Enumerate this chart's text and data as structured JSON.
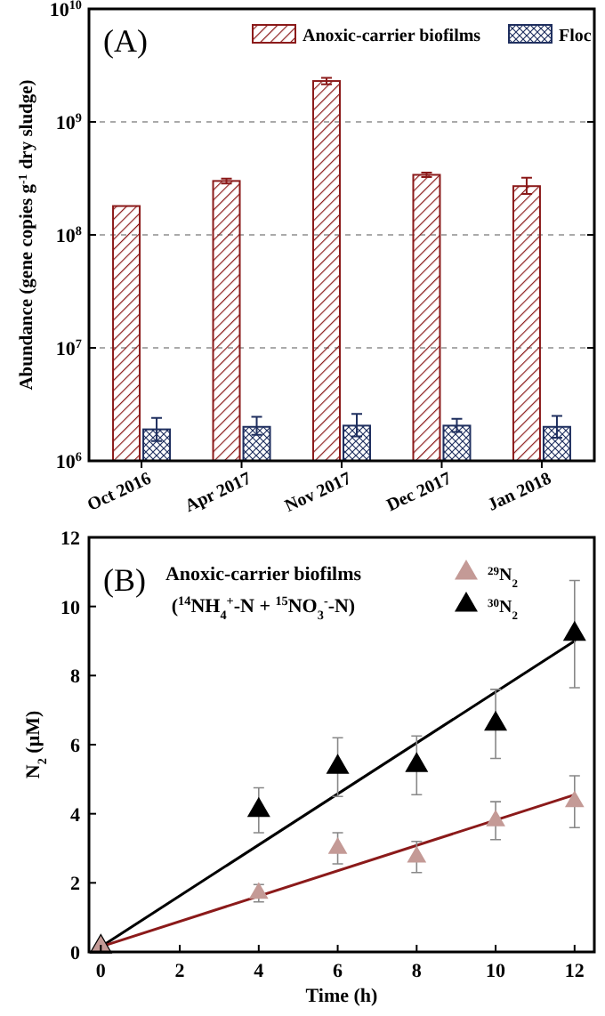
{
  "chart_data": [
    {
      "type": "bar",
      "annotations": [
        "(A)"
      ],
      "ylabel": "Abundance (gene copies g$^{-1}$ dry sludge)",
      "categories": [
        "Oct 2016",
        "Apr 2017",
        "Nov 2017",
        "Dec 2017",
        "Jan 2018"
      ],
      "log": true,
      "ylim": [
        1000000,
        10000000000
      ],
      "yticks": [
        {
          "value": 1000000,
          "label": "10$^{6}$"
        },
        {
          "value": 10000000,
          "label": "10$^{7}$"
        },
        {
          "value": 100000000,
          "label": "10$^{8}$"
        },
        {
          "value": 1000000000,
          "label": "10$^{9}$"
        },
        {
          "value": 10000000000,
          "label": "10$^{10}$"
        }
      ],
      "grid": "y",
      "legend": "top right",
      "series": [
        {
          "name": "Anoxic-carrier biofilms",
          "color": "#8b1a1a",
          "values": [
            180000000,
            300000000,
            2300000000,
            340000000,
            270000000
          ],
          "errors": [
            null,
            [
              285000000,
              315000000
            ],
            [
              2150000000,
              2450000000
            ],
            [
              325000000,
              355000000
            ],
            [
              230000000,
              320000000
            ]
          ]
        },
        {
          "name": "Floc",
          "color": "#1f2f5f",
          "values": [
            1900000,
            2000000,
            2050000,
            2050000,
            2000000
          ],
          "errors": [
            [
              1500000,
              2400000
            ],
            [
              1700000,
              2450000
            ],
            [
              1650000,
              2600000
            ],
            [
              1800000,
              2350000
            ],
            [
              1600000,
              2500000
            ]
          ]
        }
      ]
    },
    {
      "type": "scatter",
      "annotations": [
        "(B)",
        "Anoxic-carrier biofilms",
        "($^{14}$NH$_{4}$$^{+}$-N + $^{15}$NO$_{3}$$^{-}$-N)"
      ],
      "xlabel": "Time (h)",
      "ylabel": "N$_{2}$ (μM)",
      "xlim": [
        -0.3,
        12.5
      ],
      "xticks": [
        0,
        2,
        4,
        6,
        8,
        10,
        12
      ],
      "ylim": [
        0,
        12
      ],
      "yticks": [
        0,
        2,
        4,
        6,
        8,
        10,
        12
      ],
      "legend": "top right",
      "series": [
        {
          "name": "$^{29}$N$_{2}$",
          "color": "#c49a96",
          "marker": "triangle",
          "x": [
            0,
            4,
            6,
            8,
            10,
            12
          ],
          "values": [
            0.15,
            1.7,
            3.0,
            2.75,
            3.8,
            4.35
          ],
          "errors": [
            null,
            0.25,
            0.45,
            0.45,
            0.55,
            0.75
          ]
        },
        {
          "name": "$^{30}$N$_{2}$",
          "color": "#000000",
          "marker": "triangle",
          "x": [
            0,
            4,
            6,
            8,
            10,
            12
          ],
          "values": [
            0.15,
            4.1,
            5.35,
            5.4,
            6.6,
            9.2
          ],
          "errors": [
            null,
            0.65,
            0.85,
            0.85,
            1.0,
            1.55
          ]
        },
        {
          "type": "line",
          "color": "#8b1a1a",
          "x": [
            0,
            12
          ],
          "values": [
            0.15,
            4.55
          ],
          "marker": "none"
        },
        {
          "type": "line",
          "color": "#000000",
          "x": [
            0,
            12
          ],
          "values": [
            0.15,
            9.0
          ],
          "marker": "none"
        }
      ]
    }
  ]
}
